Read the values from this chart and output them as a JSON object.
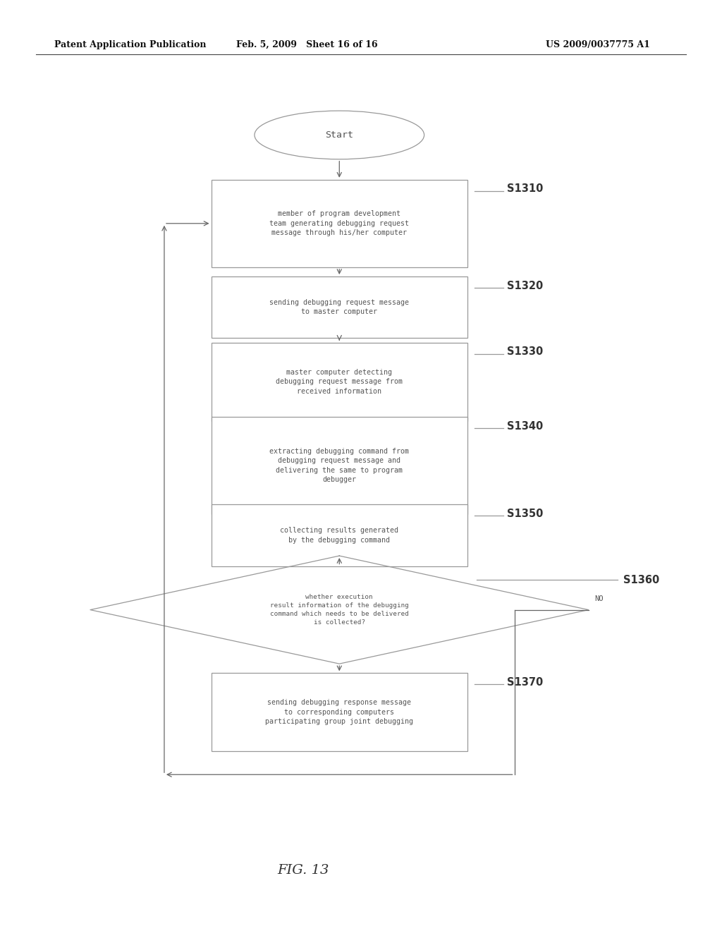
{
  "background_color": "#ffffff",
  "header_left": "Patent Application Publication",
  "header_mid": "Feb. 5, 2009   Sheet 16 of 16",
  "header_right": "US 2009/0037775 A1",
  "fig_label": "FIG. 13",
  "start_label": "Start",
  "s1310_text": "member of program development\nteam generating debugging request\nmessage through his/her computer",
  "s1320_text": "sending debugging request message\nto master computer",
  "s1330_text": "master computer detecting\ndebugging request message from\nreceived information",
  "s1340_text": "extracting debugging command from\ndebugging request message and\ndelivering the same to program\ndebugger",
  "s1350_text": "collecting results generated\nby the debugging command",
  "s1360_text": "whether execution\nresult information of the debugging\ncommand which needs to be delivered\nis collected?",
  "s1370_text": "sending debugging response message\nto corresponding computers\nparticipating group joint debugging",
  "edge_color": "#999999",
  "text_color": "#555555",
  "arrow_color": "#666666",
  "label_color": "#333333",
  "font_size": 7.2,
  "label_font_size": 10.5
}
